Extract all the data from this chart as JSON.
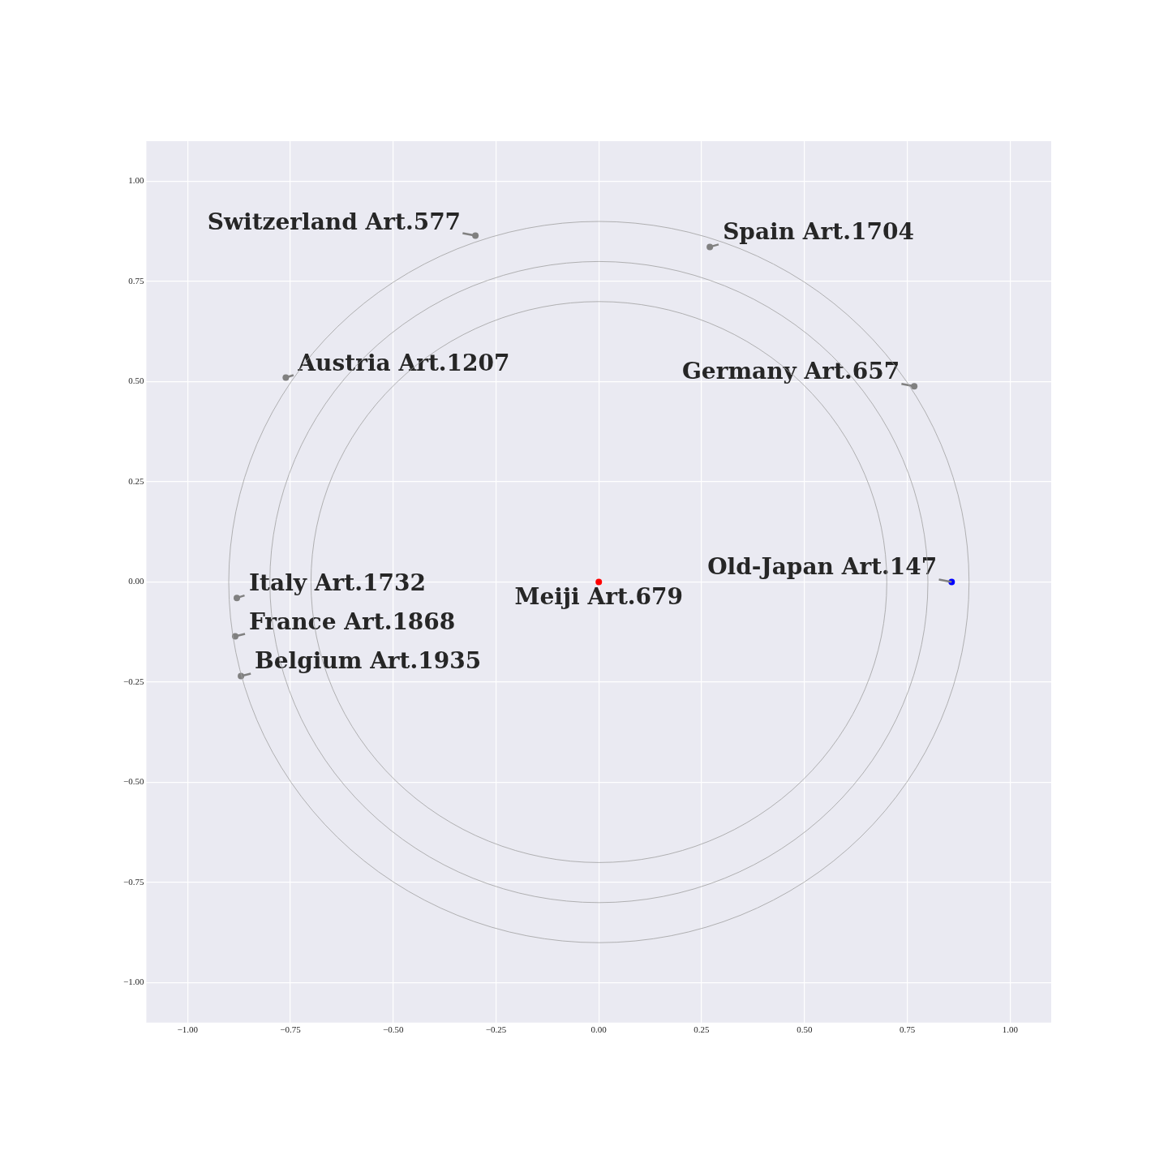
{
  "chart_data": {
    "type": "scatter",
    "xlim": [
      -1.1,
      1.1
    ],
    "ylim": [
      -1.1,
      1.1
    ],
    "xticks": [
      {
        "value": -1,
        "label": "−1.00"
      },
      {
        "value": -0.75,
        "label": "−0.75"
      },
      {
        "value": -0.5,
        "label": "−0.50"
      },
      {
        "value": -0.25,
        "label": "−0.25"
      },
      {
        "value": 0,
        "label": "0.00"
      },
      {
        "value": 0.25,
        "label": "0.25"
      },
      {
        "value": 0.5,
        "label": "0.50"
      },
      {
        "value": 0.75,
        "label": "0.75"
      },
      {
        "value": 1,
        "label": "1.00"
      }
    ],
    "yticks": [
      {
        "value": -1,
        "label": "−1.00"
      },
      {
        "value": -0.75,
        "label": "−0.75"
      },
      {
        "value": -0.5,
        "label": "−0.50"
      },
      {
        "value": -0.25,
        "label": "−0.25"
      },
      {
        "value": 0,
        "label": "0.00"
      },
      {
        "value": 0.25,
        "label": "0.25"
      },
      {
        "value": 0.5,
        "label": "0.50"
      },
      {
        "value": 0.75,
        "label": "0.75"
      },
      {
        "value": 1,
        "label": "1.00"
      }
    ],
    "grid": true,
    "legend": false,
    "marker": "circle",
    "series": [
      {
        "type": "scatter",
        "color": "#808080",
        "x": [
          -0.3,
          0.27,
          -0.761,
          0.767,
          -0.88,
          -0.884,
          -0.87
        ],
        "values": [
          0.864,
          0.836,
          0.51,
          0.488,
          -0.04,
          -0.136,
          -0.235
        ]
      },
      {
        "type": "scatter",
        "color": "#0000ff",
        "x": [
          0.858
        ],
        "values": [
          0
        ]
      },
      {
        "type": "scatter",
        "color": "#ff0000",
        "x": [
          0
        ],
        "values": [
          0
        ]
      }
    ],
    "annotations": [
      {
        "text": "Switzerland Art.577",
        "x": -0.3,
        "y": 0.864
      },
      {
        "text": "Spain Art.1704",
        "x": 0.27,
        "y": 0.836
      },
      {
        "text": "Austria Art.1207",
        "x": -0.761,
        "y": 0.51
      },
      {
        "text": "Germany Art.657",
        "x": 0.767,
        "y": 0.488
      },
      {
        "text": "Old-Japan Art.147",
        "x": 0.858,
        "y": 0
      },
      {
        "text": "Meiji Art.679",
        "x": 0,
        "y": 0
      },
      {
        "text": "Italy Art.1732",
        "x": -0.88,
        "y": -0.04
      },
      {
        "text": "France Art.1868",
        "x": -0.884,
        "y": -0.136
      },
      {
        "text": "Belgium Art.1935",
        "x": -0.87,
        "y": -0.235
      }
    ]
  }
}
